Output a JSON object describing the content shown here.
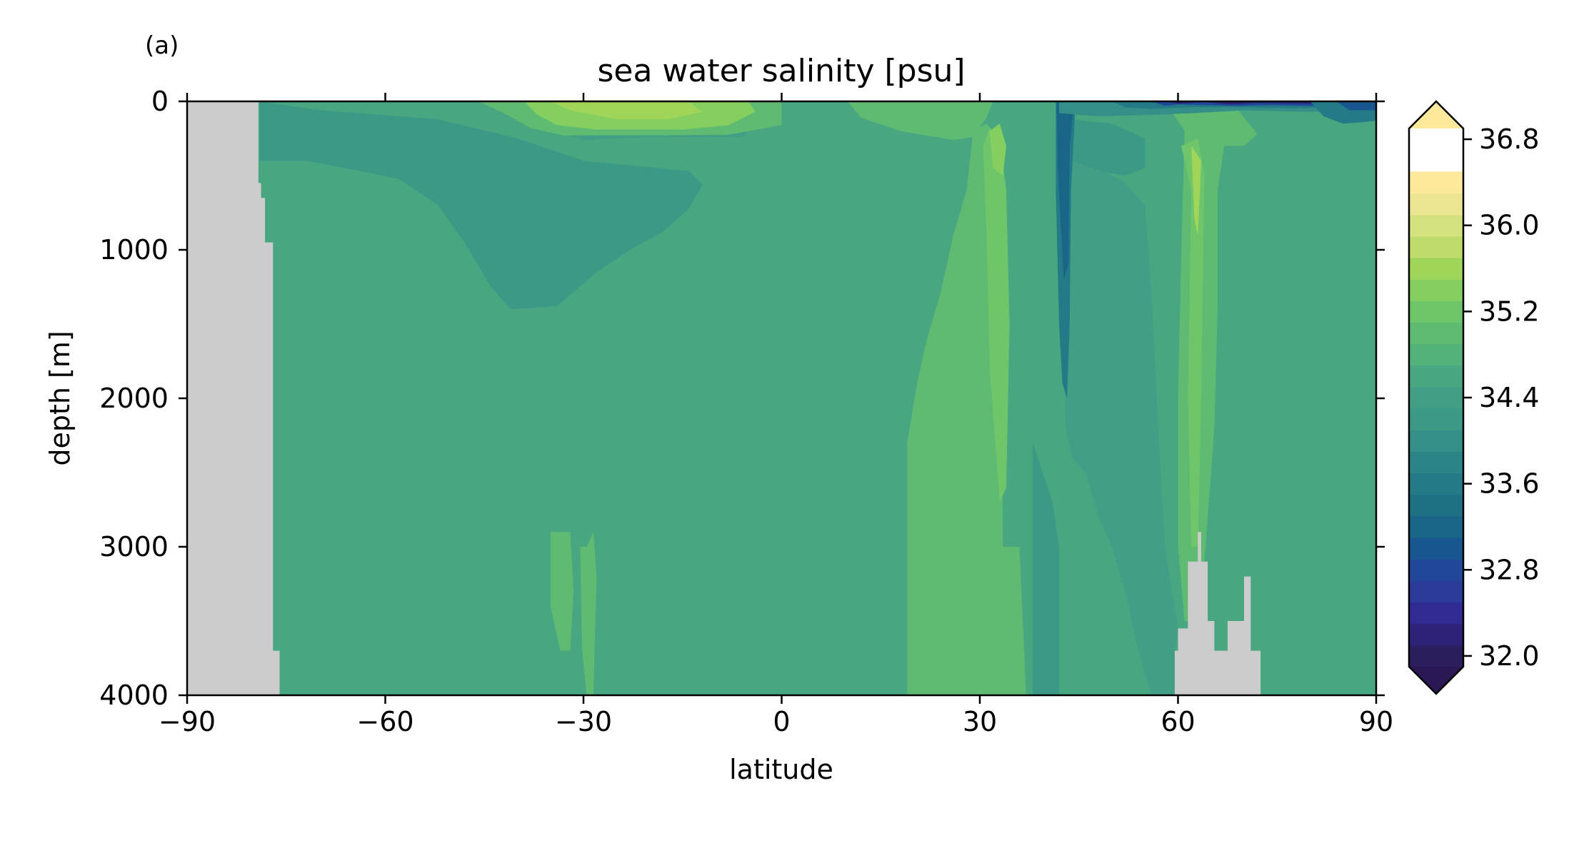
{
  "panel_label": "(a)",
  "chart_data": {
    "type": "heatmap",
    "title": "sea water salinity [psu]",
    "xlabel": "latitude",
    "ylabel": "depth [m]",
    "xlim": [
      -90,
      90
    ],
    "ylim": [
      4000,
      0
    ],
    "y_inverted": true,
    "x_ticks": [
      -90,
      -60,
      -30,
      0,
      30,
      60,
      90
    ],
    "x_tick_labels": [
      "−90",
      "−60",
      "−30",
      "0",
      "30",
      "60",
      "90"
    ],
    "y_ticks": [
      0,
      1000,
      2000,
      3000,
      4000
    ],
    "y_tick_labels": [
      "0",
      "1000",
      "2000",
      "3000",
      "4000"
    ],
    "grid": false,
    "colorbar": {
      "min": 32.0,
      "max": 37.0,
      "step": 0.2,
      "extend": "both",
      "ticks": [
        32.0,
        32.8,
        33.6,
        34.4,
        35.2,
        36.0,
        36.8
      ],
      "tick_labels": [
        "32.0",
        "32.8",
        "33.6",
        "34.4",
        "35.2",
        "36.0",
        "36.8"
      ],
      "colors": [
        "#2c1e5c",
        "#2e2278",
        "#2f2b93",
        "#2c3a9a",
        "#20479a",
        "#18568f",
        "#186588",
        "#1d7084",
        "#247a86",
        "#2b8587",
        "#338f87",
        "#3a9a85",
        "#429e84",
        "#48a681",
        "#52b27a",
        "#5fba72",
        "#6fc56a",
        "#84cf5f",
        "#9fd65a",
        "#bddc6c",
        "#d6e17f",
        "#ece694",
        "#fde99b"
      ],
      "over_color": "#fde99b",
      "under_color": "#2a1854"
    },
    "land_color": "#cccccc",
    "background_value": 34.75,
    "land_regions": [
      {
        "name": "antarctica",
        "polygon": [
          [
            -90,
            0
          ],
          [
            -79.2,
            0
          ],
          [
            -79.2,
            550
          ],
          [
            -78.8,
            550
          ],
          [
            -78.8,
            650
          ],
          [
            -78.2,
            650
          ],
          [
            -78.2,
            950
          ],
          [
            -77.0,
            950
          ],
          [
            -77.0,
            3700
          ],
          [
            -76.0,
            3700
          ],
          [
            -76.0,
            4000
          ],
          [
            -90,
            4000
          ]
        ]
      },
      {
        "name": "arctic-ridge",
        "polygon": [
          [
            59.5,
            4000
          ],
          [
            59.5,
            3700
          ],
          [
            60.0,
            3700
          ],
          [
            60.0,
            3550
          ],
          [
            61.5,
            3550
          ],
          [
            61.5,
            3100
          ],
          [
            63.0,
            3100
          ],
          [
            63.0,
            2900
          ],
          [
            63.5,
            2900
          ],
          [
            63.5,
            3100
          ],
          [
            64.5,
            3100
          ],
          [
            64.5,
            3500
          ],
          [
            65.5,
            3500
          ],
          [
            65.5,
            3700
          ],
          [
            67.5,
            3700
          ],
          [
            67.5,
            3500
          ],
          [
            70.0,
            3500
          ],
          [
            70.0,
            3200
          ],
          [
            71.0,
            3200
          ],
          [
            71.0,
            3700
          ],
          [
            72.5,
            3700
          ],
          [
            72.5,
            4000
          ]
        ]
      }
    ],
    "fields": [
      {
        "value": 34.25,
        "polygon": [
          [
            -79,
            0
          ],
          [
            -79,
            400
          ],
          [
            -72,
            400
          ],
          [
            -66,
            450
          ],
          [
            -58,
            520
          ],
          [
            -52,
            700
          ],
          [
            -48,
            950
          ],
          [
            -44,
            1250
          ],
          [
            -41,
            1400
          ],
          [
            -34,
            1380
          ],
          [
            -28,
            1150
          ],
          [
            -23,
            1000
          ],
          [
            -18,
            880
          ],
          [
            -14,
            720
          ],
          [
            -12,
            560
          ],
          [
            -14,
            470
          ],
          [
            -30,
            400
          ],
          [
            -40,
            250
          ],
          [
            -52,
            120
          ],
          [
            -70,
            60
          ],
          [
            -79,
            0
          ]
        ]
      },
      {
        "value": 34.55,
        "polygon": [
          [
            -35,
            0
          ],
          [
            -34,
            200
          ],
          [
            -30,
            260
          ],
          [
            -20,
            240
          ],
          [
            -6,
            240
          ],
          [
            -3,
            120
          ],
          [
            -6,
            0
          ]
        ]
      },
      {
        "value": 35.0,
        "polygon": [
          [
            -46,
            0
          ],
          [
            -42,
            80
          ],
          [
            -38,
            180
          ],
          [
            -33,
            230
          ],
          [
            -20,
            230
          ],
          [
            -8,
            225
          ],
          [
            0,
            160
          ],
          [
            0,
            0
          ]
        ]
      },
      {
        "value": 35.45,
        "polygon": [
          [
            -39,
            0
          ],
          [
            -37,
            90
          ],
          [
            -34,
            160
          ],
          [
            -28,
            190
          ],
          [
            -15,
            190
          ],
          [
            -8,
            160
          ],
          [
            -4,
            70
          ],
          [
            -5,
            0
          ]
        ]
      },
      {
        "value": 35.75,
        "polygon": [
          [
            -35,
            0
          ],
          [
            -32,
            60
          ],
          [
            -25,
            120
          ],
          [
            -17,
            120
          ],
          [
            -12,
            70
          ],
          [
            -14,
            0
          ]
        ]
      },
      {
        "value": 35.75,
        "polygon": [
          [
            20,
            0
          ],
          [
            20,
            80
          ],
          [
            25,
            110
          ],
          [
            28,
            60
          ],
          [
            30,
            0
          ]
        ]
      },
      {
        "value": 35.0,
        "polygon": [
          [
            10,
            0
          ],
          [
            12,
            110
          ],
          [
            18,
            200
          ],
          [
            26,
            260
          ],
          [
            29,
            240
          ],
          [
            31,
            110
          ],
          [
            32,
            0
          ]
        ]
      },
      {
        "value": 35.0,
        "polygon": [
          [
            19,
            4000
          ],
          [
            19,
            2300
          ],
          [
            20.5,
            1900
          ],
          [
            22,
            1600
          ],
          [
            24,
            1300
          ],
          [
            26,
            900
          ],
          [
            28,
            600
          ],
          [
            29,
            200
          ],
          [
            31,
            150
          ],
          [
            33,
            250
          ],
          [
            33.5,
            3000
          ],
          [
            36,
            3000
          ],
          [
            37,
            4000
          ]
        ]
      },
      {
        "value": 35.25,
        "polygon": [
          [
            30.5,
            300
          ],
          [
            31,
            900
          ],
          [
            31.5,
            1800
          ],
          [
            32.5,
            2400
          ],
          [
            33,
            2700
          ],
          [
            34,
            2600
          ],
          [
            34.5,
            1500
          ],
          [
            34,
            600
          ],
          [
            33,
            250
          ],
          [
            31.5,
            180
          ]
        ]
      },
      {
        "value": 35.5,
        "polygon": [
          [
            31.5,
            200
          ],
          [
            32,
            450
          ],
          [
            33.5,
            500
          ],
          [
            34,
            300
          ],
          [
            33,
            150
          ]
        ]
      },
      {
        "value": 35.0,
        "polygon": [
          [
            58,
            0
          ],
          [
            61,
            200
          ],
          [
            60.5,
            1000
          ],
          [
            60,
            2000
          ],
          [
            60,
            3000
          ],
          [
            61,
            3500
          ],
          [
            64,
            3500
          ],
          [
            64,
            3100
          ],
          [
            65.5,
            2200
          ],
          [
            66,
            1400
          ],
          [
            66,
            600
          ],
          [
            67,
            300
          ],
          [
            70,
            300
          ],
          [
            72,
            220
          ],
          [
            68,
            0
          ]
        ]
      },
      {
        "value": 35.25,
        "polygon": [
          [
            60.5,
            300
          ],
          [
            62,
            600
          ],
          [
            61.5,
            2000
          ],
          [
            62,
            3000
          ],
          [
            63,
            3000
          ],
          [
            63.5,
            2000
          ],
          [
            64,
            500
          ],
          [
            63,
            250
          ]
        ]
      },
      {
        "value": 35.75,
        "polygon": [
          [
            62,
            300
          ],
          [
            62.5,
            800
          ],
          [
            63,
            900
          ],
          [
            63.5,
            400
          ]
        ]
      },
      {
        "value": 34.4,
        "polygon": [
          [
            43,
            0
          ],
          [
            42.5,
            1200
          ],
          [
            43,
            2200
          ],
          [
            44,
            2400
          ],
          [
            46,
            2500
          ],
          [
            48,
            2800
          ],
          [
            50,
            3000
          ],
          [
            52,
            3300
          ],
          [
            54,
            3700
          ],
          [
            56,
            4000
          ],
          [
            59.5,
            4000
          ],
          [
            59.5,
            3700
          ],
          [
            60,
            3550
          ],
          [
            58,
            3000
          ],
          [
            57,
            2200
          ],
          [
            56,
            1300
          ],
          [
            55,
            700
          ],
          [
            52,
            550
          ],
          [
            47,
            420
          ],
          [
            44,
            200
          ],
          [
            45,
            0
          ]
        ]
      },
      {
        "value": 34.2,
        "polygon": [
          [
            44,
            120
          ],
          [
            44,
            400
          ],
          [
            49,
            480
          ],
          [
            52,
            500
          ],
          [
            55,
            450
          ],
          [
            55,
            250
          ],
          [
            50,
            150
          ]
        ]
      },
      {
        "value": 34.2,
        "polygon": [
          [
            38,
            2300
          ],
          [
            38,
            4000
          ],
          [
            42,
            4000
          ],
          [
            42,
            3000
          ],
          [
            41,
            2700
          ]
        ]
      },
      {
        "value": 33.7,
        "polygon": [
          [
            41.5,
            0
          ],
          [
            41.5,
            600
          ],
          [
            42.0,
            1500
          ],
          [
            42.5,
            1900
          ],
          [
            43.2,
            2000
          ],
          [
            43.6,
            1500
          ],
          [
            43.8,
            600
          ],
          [
            44.5,
            0
          ]
        ]
      },
      {
        "value": 33.2,
        "polygon": [
          [
            41.6,
            0
          ],
          [
            41.8,
            450
          ],
          [
            42.7,
            1200
          ],
          [
            43.4,
            1100
          ],
          [
            43.6,
            300
          ],
          [
            44.3,
            0
          ]
        ]
      },
      {
        "value": 35.0,
        "polygon": [
          [
            -35,
            2900
          ],
          [
            -35,
            3400
          ],
          [
            -33.5,
            3700
          ],
          [
            -32,
            3700
          ],
          [
            -31.5,
            3300
          ],
          [
            -32,
            2900
          ]
        ]
      },
      {
        "value": 35.0,
        "polygon": [
          [
            -30.5,
            3000
          ],
          [
            -30.2,
            3700
          ],
          [
            -29.5,
            4000
          ],
          [
            -28.5,
            4000
          ],
          [
            -28,
            3200
          ],
          [
            -28.5,
            2900
          ],
          [
            -29.5,
            3000
          ]
        ]
      },
      {
        "value": 34.1,
        "polygon": [
          [
            42,
            0
          ],
          [
            42,
            80
          ],
          [
            48,
            100
          ],
          [
            56,
            90
          ],
          [
            62,
            80
          ],
          [
            70,
            60
          ],
          [
            80,
            70
          ],
          [
            88,
            60
          ],
          [
            90,
            55
          ],
          [
            90,
            0
          ]
        ]
      },
      {
        "value": 33.7,
        "polygon": [
          [
            50,
            0
          ],
          [
            52,
            40
          ],
          [
            56,
            50
          ],
          [
            62,
            40
          ],
          [
            70,
            40
          ],
          [
            78,
            45
          ],
          [
            84,
            40
          ],
          [
            90,
            30
          ],
          [
            90,
            0
          ]
        ]
      },
      {
        "value": 32.8,
        "polygon": [
          [
            56,
            0
          ],
          [
            58,
            30
          ],
          [
            60,
            20
          ],
          [
            64,
            25
          ],
          [
            69,
            30
          ],
          [
            74,
            25
          ],
          [
            80,
            30
          ],
          [
            88,
            20
          ],
          [
            90,
            15
          ],
          [
            90,
            0
          ]
        ]
      },
      {
        "value": 32.3,
        "polygon": [
          [
            58,
            0
          ],
          [
            60,
            15
          ],
          [
            64,
            5
          ],
          [
            68,
            20
          ],
          [
            72,
            10
          ],
          [
            80,
            15
          ],
          [
            88,
            5
          ],
          [
            90,
            0
          ]
        ]
      },
      {
        "value": 33.6,
        "polygon": [
          [
            80,
            0
          ],
          [
            82,
            100
          ],
          [
            85,
            150
          ],
          [
            88,
            140
          ],
          [
            90,
            130
          ],
          [
            90,
            0
          ]
        ]
      },
      {
        "value": 33.0,
        "polygon": [
          [
            84,
            0
          ],
          [
            86,
            60
          ],
          [
            90,
            60
          ],
          [
            90,
            0
          ]
        ]
      }
    ]
  }
}
